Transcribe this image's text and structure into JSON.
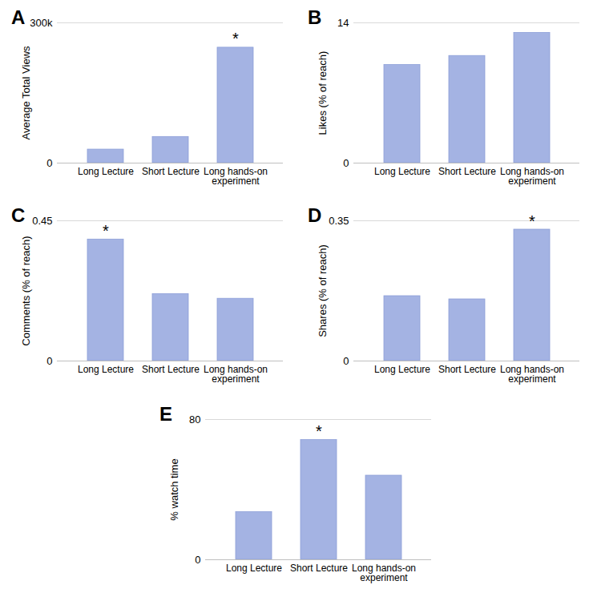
{
  "chart_data": [
    {
      "type": "bar",
      "title": "A",
      "y_label": "Average Total Views",
      "categories": [
        "Long Lecture",
        "Short Lecture",
        "Long hands-on experiment"
      ],
      "values": [
        29000,
        56000,
        247000
      ],
      "color": "#a4b3e3",
      "ylim": [
        0,
        300000
      ],
      "yticks": [
        0,
        {
          "value": 300000,
          "label": "300k"
        }
      ],
      "grid": true,
      "annotations": [
        {
          "category": "Long hands-on experiment",
          "text": "*"
        }
      ]
    },
    {
      "type": "bar",
      "title": "B",
      "y_label": "Likes (% of reach)",
      "categories": [
        "Long Lecture",
        "Short Lecture",
        "Long hands-on experiment"
      ],
      "values": [
        9.8,
        10.7,
        13.0
      ],
      "color": "#a4b3e3",
      "ylim": [
        0,
        14
      ],
      "yticks": [
        0,
        14
      ],
      "grid": true,
      "annotations": []
    },
    {
      "type": "bar",
      "title": "C",
      "y_label": "Comments (% of reach)",
      "categories": [
        "Long Lecture",
        "Short Lecture",
        "Long hands-on experiment"
      ],
      "values": [
        0.39,
        0.215,
        0.2
      ],
      "color": "#a4b3e3",
      "ylim": [
        0,
        0.45
      ],
      "yticks": [
        0,
        0.45
      ],
      "grid": true,
      "annotations": [
        {
          "category": "Long Lecture",
          "text": "*"
        }
      ]
    },
    {
      "type": "bar",
      "title": "D",
      "y_label": "Shares (% of reach)",
      "categories": [
        "Long Lecture",
        "Short Lecture",
        "Long hands-on experiment"
      ],
      "values": [
        0.162,
        0.154,
        0.328
      ],
      "color": "#a4b3e3",
      "ylim": [
        0,
        0.35
      ],
      "yticks": [
        0,
        0.35
      ],
      "grid": true,
      "annotations": [
        {
          "category": "Long hands-on experiment",
          "text": "*"
        }
      ]
    },
    {
      "type": "bar",
      "title": "E",
      "y_label": "% watch time",
      "categories": [
        "Long Lecture",
        "Short Lecture",
        "Long hands-on experiment"
      ],
      "values": [
        27.2,
        68.3,
        48
      ],
      "color": "#a4b3e3",
      "ylim": [
        0,
        80
      ],
      "yticks": [
        0,
        80
      ],
      "grid": true,
      "annotations": [
        {
          "category": "Short Lecture",
          "text": "*"
        }
      ]
    }
  ]
}
